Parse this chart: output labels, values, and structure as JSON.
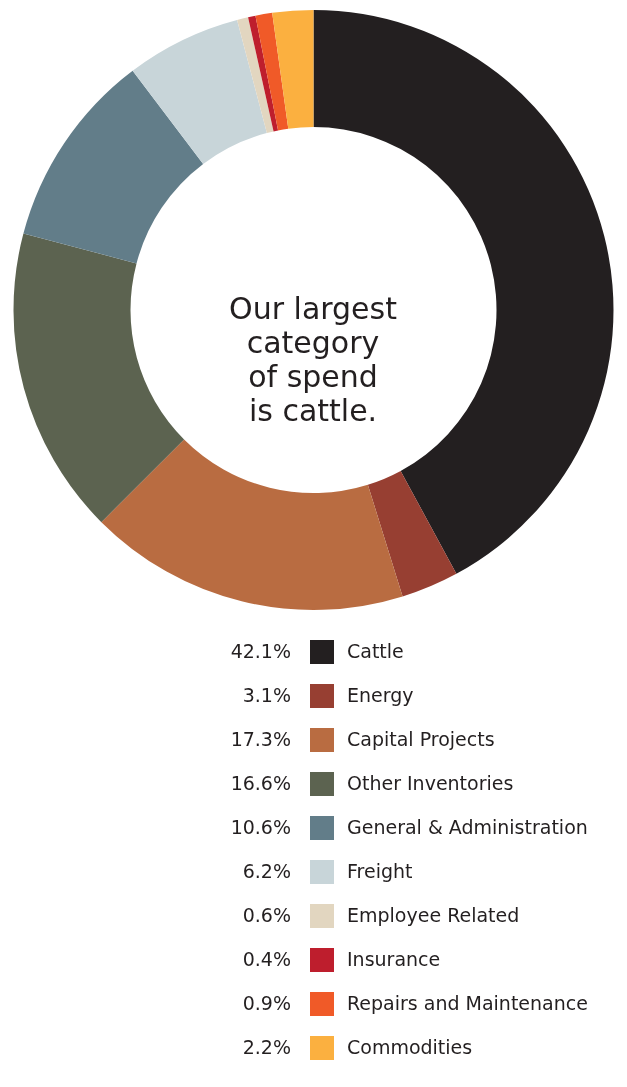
{
  "chart_data": {
    "type": "donut",
    "title": "Our largest\ncategory\nof spend\nis cattle.",
    "categories": [
      "Cattle",
      "Energy",
      "Capital Projects",
      "Other Inventories",
      "General & Administration",
      "Freight",
      "Employee Related",
      "Insurance",
      "Repairs and Maintenance",
      "Commodities"
    ],
    "values": [
      42.1,
      3.1,
      17.3,
      16.6,
      10.6,
      6.2,
      0.6,
      0.4,
      0.9,
      2.2
    ],
    "value_labels": [
      "42.1%",
      "3.1%",
      "17.3%",
      "16.6%",
      "10.6%",
      "6.2%",
      "0.6%",
      "0.4%",
      "0.9%",
      "2.2%"
    ],
    "colors": [
      "#231f20",
      "#973f32",
      "#b96c41",
      "#5c6350",
      "#627d89",
      "#c8d5d9",
      "#e2d6c0",
      "#be1e2d",
      "#f05a28",
      "#fbb040"
    ],
    "legend": "bottom"
  }
}
